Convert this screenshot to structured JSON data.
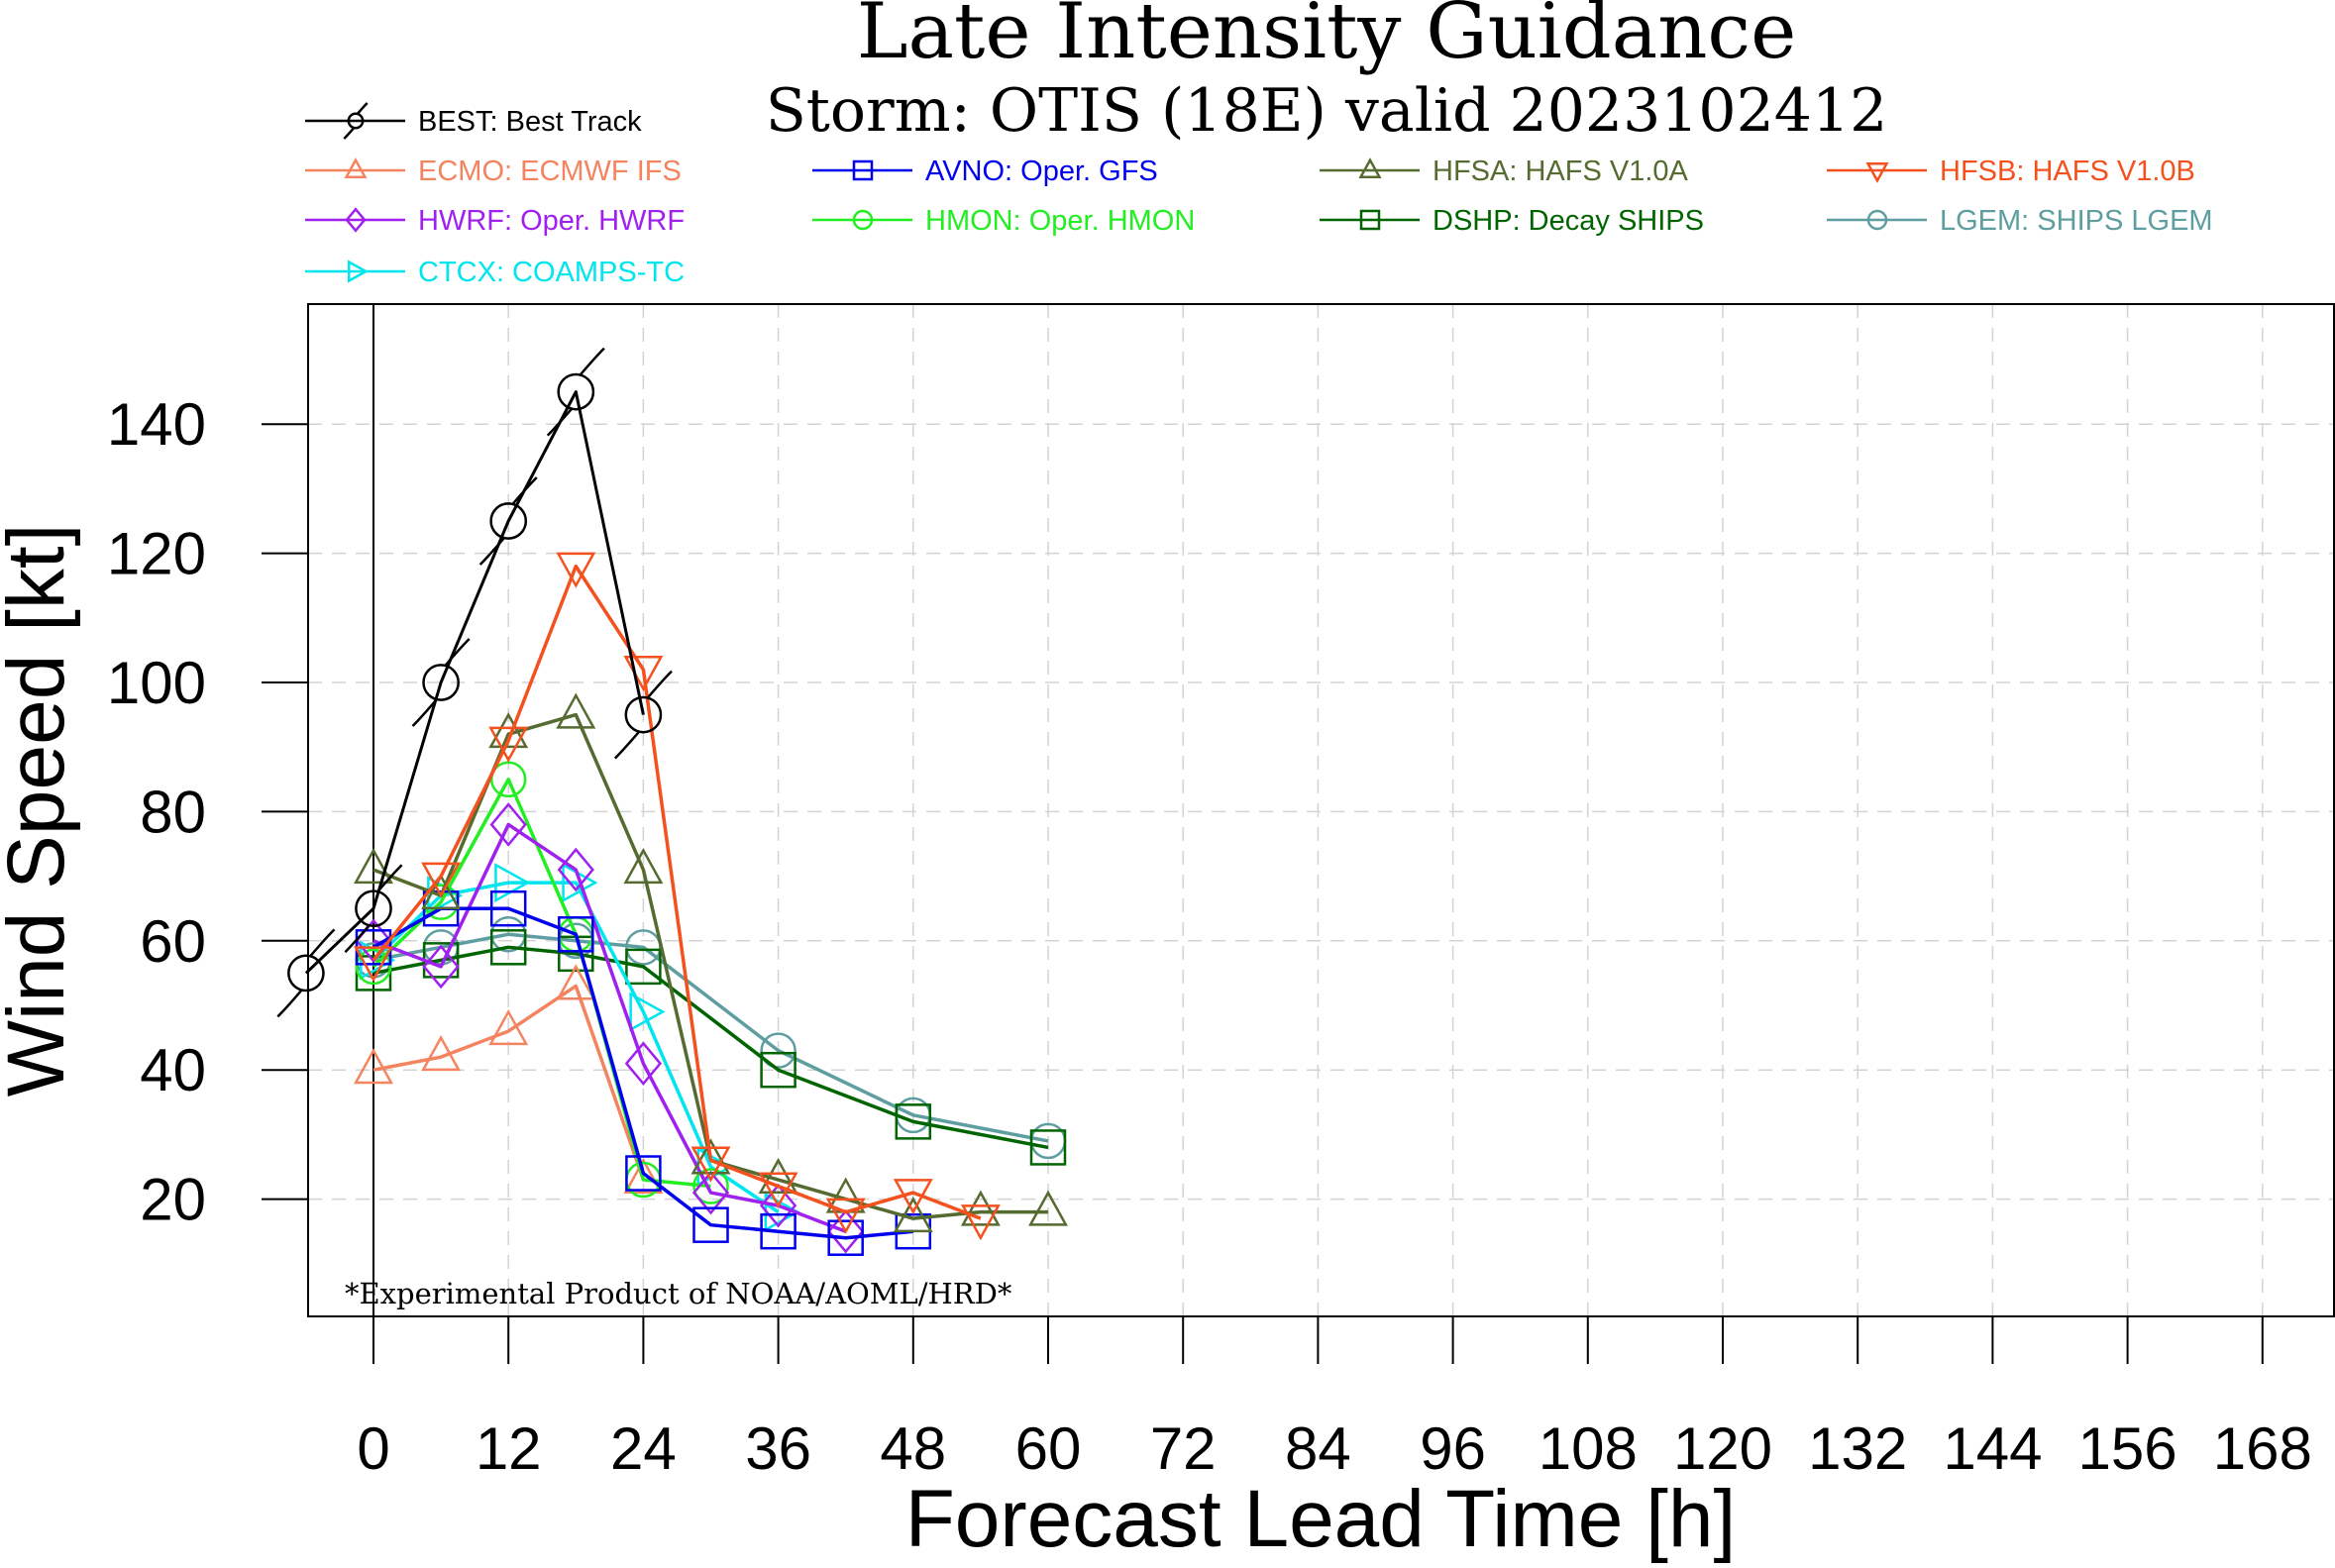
{
  "chart_data": {
    "type": "line",
    "title": "Late Intensity Guidance",
    "subtitle": "Storm: OTIS (18E) valid 2023102412",
    "xlabel": "Forecast Lead Time [h]",
    "ylabel": "Wind Speed [kt]",
    "note": "*Experimental Product of NOAA/AOML/HRD*",
    "xlim": [
      -7.5,
      172
    ],
    "ylim": [
      0,
      157
    ],
    "xticks": [
      0,
      12,
      24,
      36,
      48,
      60,
      72,
      84,
      96,
      108,
      120,
      132,
      144,
      156,
      168
    ],
    "yticks": [
      20,
      40,
      60,
      80,
      100,
      120,
      140
    ],
    "grid": true,
    "legend_position": "top",
    "series": [
      {
        "name": "BEST: Best Track",
        "color": "#000000",
        "marker": "hurricane",
        "x": [
          -6,
          0,
          6,
          12,
          18,
          24
        ],
        "y": [
          55,
          65,
          100,
          125,
          145,
          95
        ]
      },
      {
        "name": "ECMO: ECMWF IFS",
        "color": "#f4845f",
        "marker": "triangle-up",
        "x": [
          0,
          6,
          12,
          18,
          24
        ],
        "y": [
          40,
          42,
          46,
          53,
          23
        ]
      },
      {
        "name": "AVNO: Oper. GFS",
        "color": "#0000ee",
        "marker": "square",
        "x": [
          0,
          6,
          12,
          18,
          24,
          30,
          36,
          42,
          48
        ],
        "y": [
          59,
          65,
          65,
          61,
          24,
          16,
          15,
          14,
          15
        ]
      },
      {
        "name": "HFSA: HAFS V1.0A",
        "color": "#556b2f",
        "marker": "triangle-up",
        "x": [
          0,
          6,
          12,
          18,
          24,
          30,
          36,
          42,
          48,
          54,
          60
        ],
        "y": [
          71,
          67,
          92,
          95,
          71,
          26,
          23,
          20,
          17,
          18,
          18
        ]
      },
      {
        "name": "HFSB: HAFS V1.0B",
        "color": "#f4511e",
        "marker": "triangle-down",
        "x": [
          0,
          6,
          12,
          18,
          24,
          30,
          36,
          42,
          48,
          54
        ],
        "y": [
          57,
          70,
          91,
          118,
          102,
          26,
          22,
          18,
          21,
          17
        ]
      },
      {
        "name": "HWRF: Oper. HWRF",
        "color": "#a020f0",
        "marker": "diamond",
        "x": [
          0,
          6,
          12,
          18,
          24,
          30,
          36,
          42
        ],
        "y": [
          60,
          56,
          78,
          71,
          41,
          21,
          19,
          15
        ]
      },
      {
        "name": "HMON: Oper. HMON",
        "color": "#22ee22",
        "marker": "circle",
        "x": [
          0,
          6,
          12,
          18,
          24,
          30
        ],
        "y": [
          56,
          66,
          85,
          61,
          23,
          22
        ]
      },
      {
        "name": "DSHP: Decay SHIPS",
        "color": "#006400",
        "marker": "square",
        "x": [
          0,
          6,
          12,
          18,
          24,
          36,
          48,
          60
        ],
        "y": [
          55,
          57,
          59,
          58,
          56,
          40,
          32,
          28
        ]
      },
      {
        "name": "LGEM: SHIPS LGEM",
        "color": "#5f9ea0",
        "marker": "circle",
        "x": [
          0,
          6,
          12,
          18,
          24,
          36,
          48,
          60
        ],
        "y": [
          57,
          59,
          61,
          60,
          59,
          43,
          33,
          29
        ]
      },
      {
        "name": "CTCX: COAMPS-TC",
        "color": "#00e5ee",
        "marker": "triangle-right",
        "x": [
          0,
          6,
          12,
          18,
          24,
          30,
          36
        ],
        "y": [
          57,
          67,
          69,
          69,
          49,
          25,
          18
        ]
      }
    ]
  }
}
